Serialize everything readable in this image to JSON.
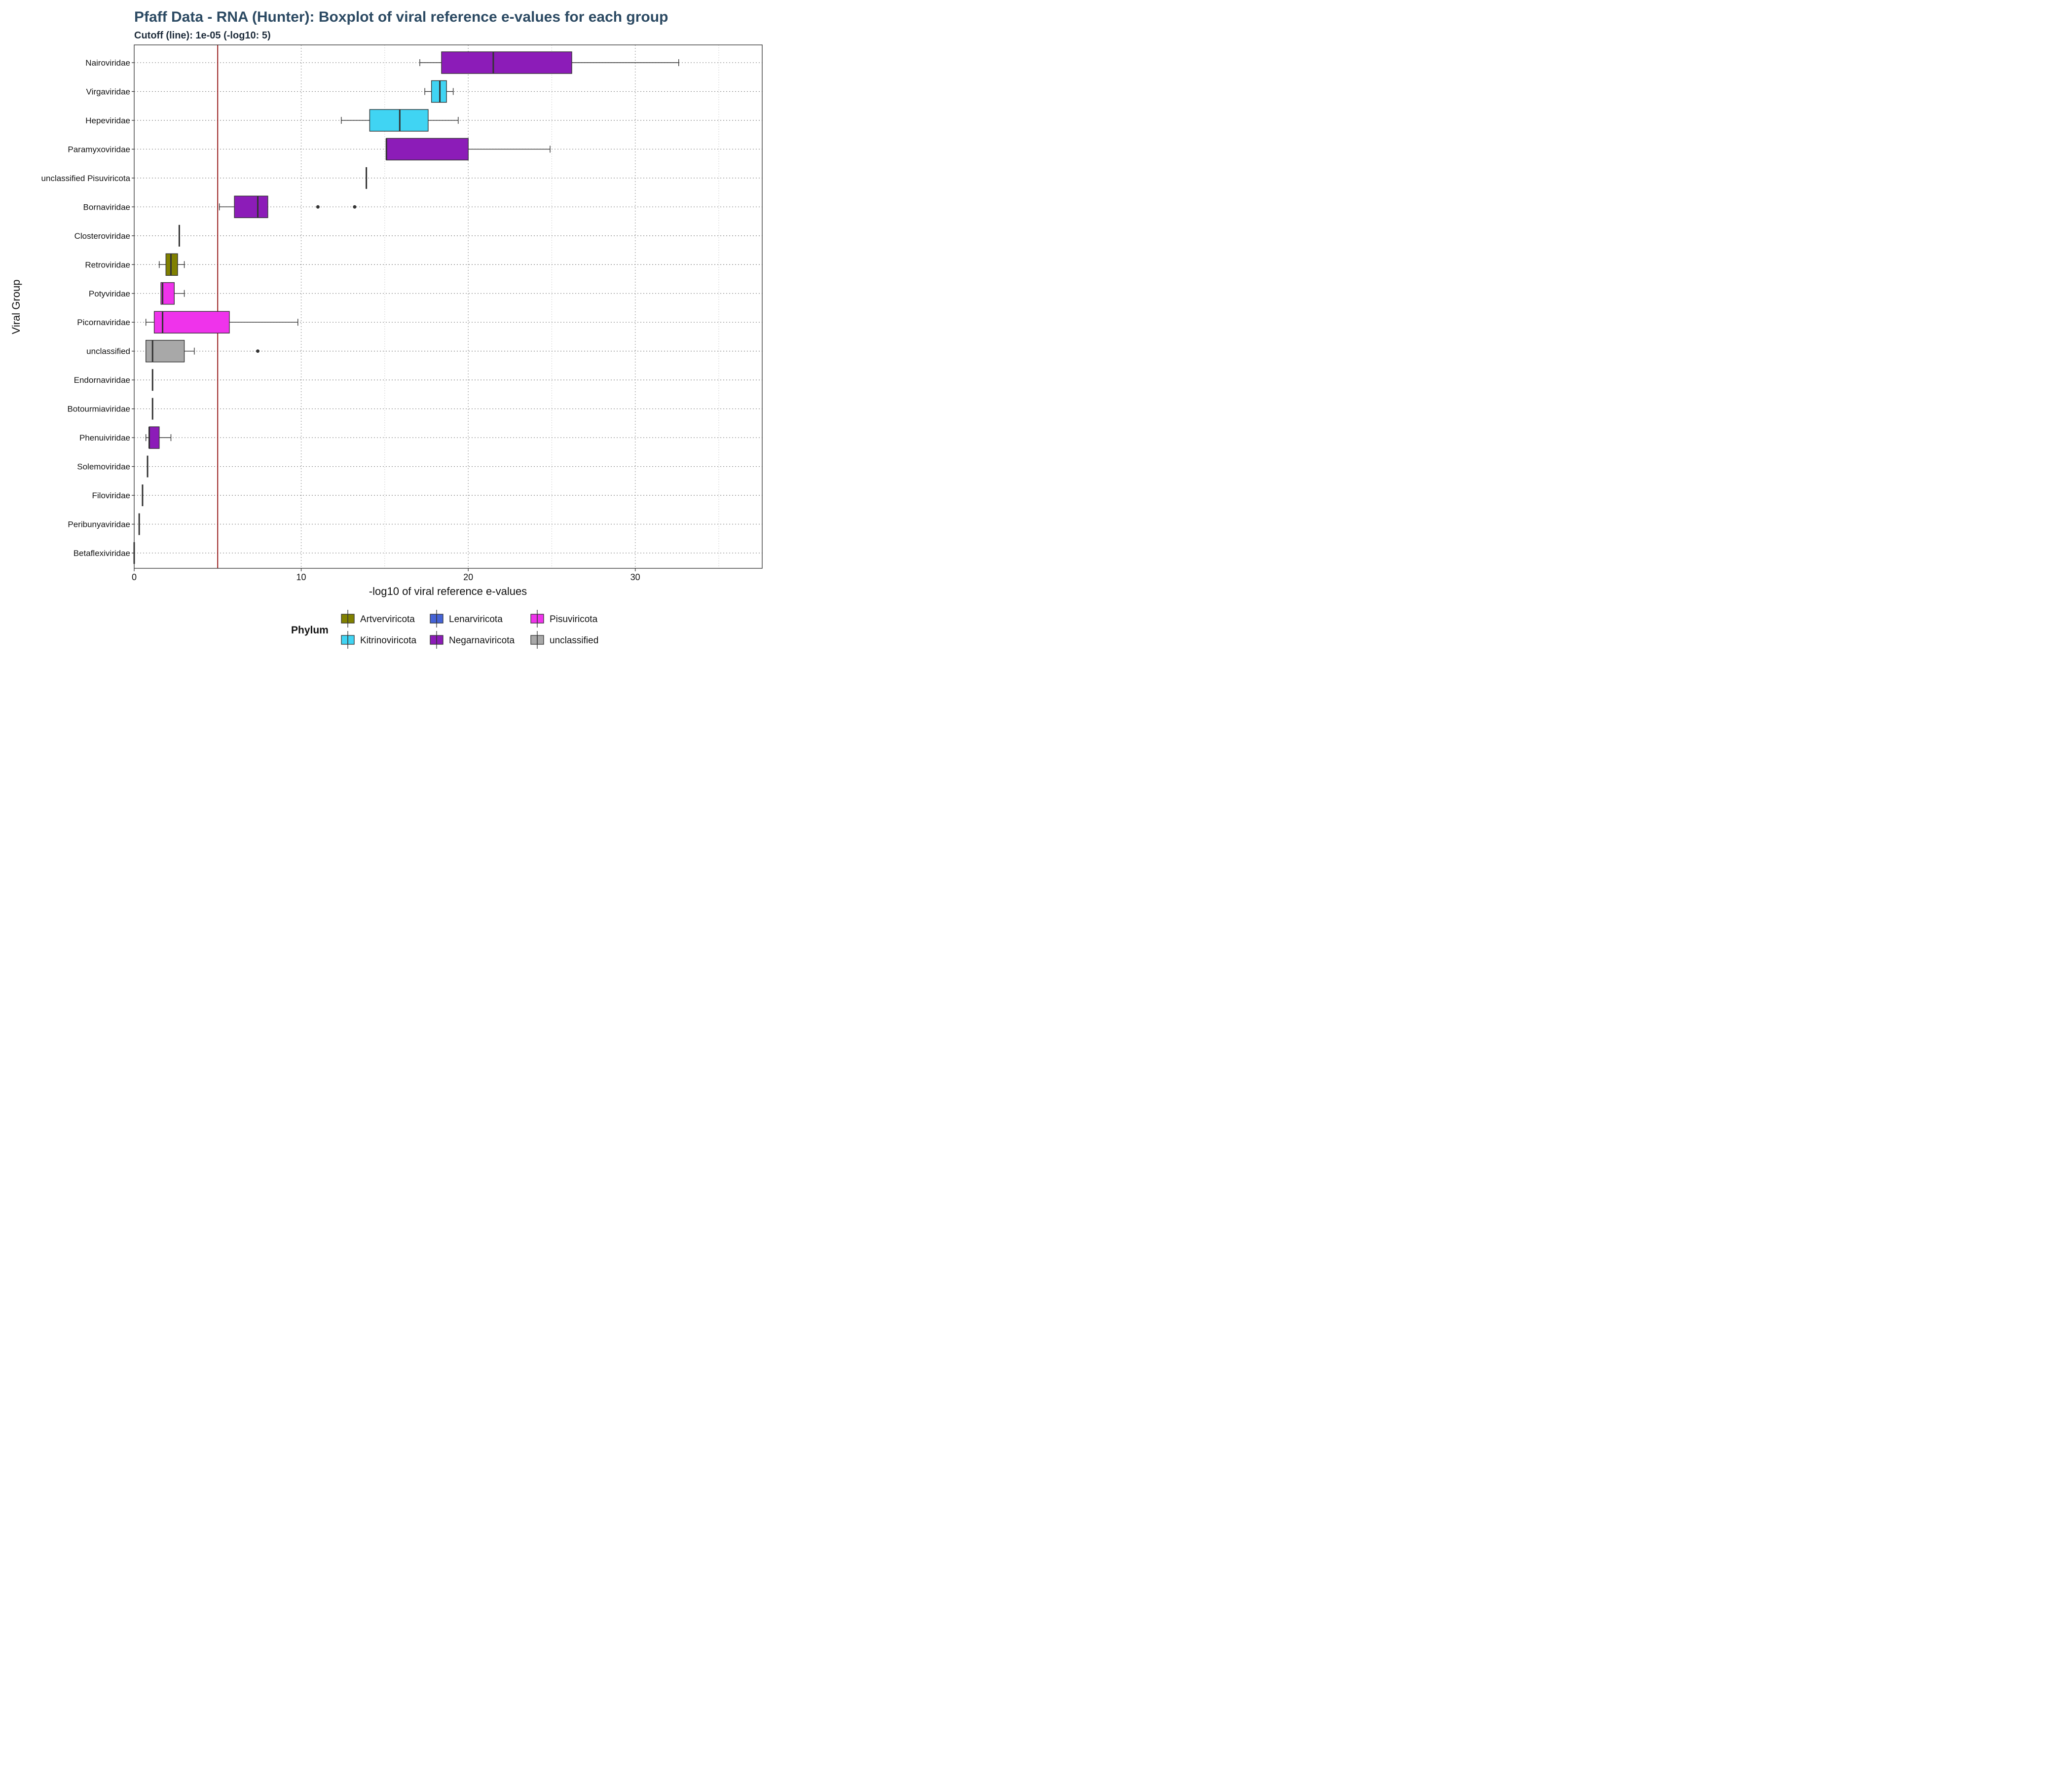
{
  "chart_data": {
    "type": "boxplot",
    "title": "Pfaff Data - RNA (Hunter): Boxplot of viral reference e-values for each group",
    "subtitle": "Cutoff (line): 1e-05 (-log10: 5)",
    "xlabel": "-log10 of viral reference e-values",
    "ylabel": "Viral Group",
    "xlim": [
      0,
      37.6
    ],
    "x_ticks": [
      0,
      10,
      20,
      30
    ],
    "x_tick_labels": [
      "0",
      "10",
      "20",
      "30"
    ],
    "cutoff": {
      "value": 5,
      "color": "#8b0000"
    },
    "grid": true,
    "legend": {
      "title": "Phylum",
      "position": "bottom",
      "entries": [
        {
          "name": "Artverviricota",
          "color": "#808000"
        },
        {
          "name": "Kitrinoviricota",
          "color": "#40d4f3"
        },
        {
          "name": "Lenarviricota",
          "color": "#4563d6"
        },
        {
          "name": "Negarnaviricota",
          "color": "#8c1cb8"
        },
        {
          "name": "Pisuviricota",
          "color": "#ef33eb"
        },
        {
          "name": "unclassified",
          "color": "#a8a8a8"
        }
      ]
    },
    "groups": [
      {
        "name": "Nairoviridae",
        "phylum": "Negarnaviricota",
        "min": 17.1,
        "q1": 18.4,
        "median": 21.5,
        "q3": 26.2,
        "max": 32.6,
        "outliers": []
      },
      {
        "name": "Virgaviridae",
        "phylum": "Kitrinoviricota",
        "min": 17.4,
        "q1": 17.8,
        "median": 18.3,
        "q3": 18.7,
        "max": 19.1,
        "outliers": []
      },
      {
        "name": "Hepeviridae",
        "phylum": "Kitrinoviricota",
        "min": 12.4,
        "q1": 14.1,
        "median": 15.9,
        "q3": 17.6,
        "max": 19.4,
        "outliers": []
      },
      {
        "name": "Paramyxoviridae",
        "phylum": "Negarnaviricota",
        "min": 15.1,
        "q1": 15.1,
        "median": 15.1,
        "q3": 20.0,
        "max": 24.9,
        "outliers": []
      },
      {
        "name": "unclassified Pisuviricota",
        "phylum": "Pisuviricota",
        "min": 13.9,
        "q1": 13.9,
        "median": 13.9,
        "q3": 13.9,
        "max": 13.9,
        "outliers": []
      },
      {
        "name": "Bornaviridae",
        "phylum": "Negarnaviricota",
        "min": 5.1,
        "q1": 6.0,
        "median": 7.4,
        "q3": 8.0,
        "max": 8.0,
        "outliers": [
          11.0,
          13.2
        ]
      },
      {
        "name": "Closteroviridae",
        "phylum": "Kitrinoviricota",
        "min": 2.7,
        "q1": 2.7,
        "median": 2.7,
        "q3": 2.7,
        "max": 2.7,
        "outliers": []
      },
      {
        "name": "Retroviridae",
        "phylum": "Artverviricota",
        "min": 1.5,
        "q1": 1.9,
        "median": 2.2,
        "q3": 2.6,
        "max": 3.0,
        "outliers": []
      },
      {
        "name": "Potyviridae",
        "phylum": "Pisuviricota",
        "min": 1.6,
        "q1": 1.6,
        "median": 1.7,
        "q3": 2.4,
        "max": 3.0,
        "outliers": []
      },
      {
        "name": "Picornaviridae",
        "phylum": "Pisuviricota",
        "min": 0.7,
        "q1": 1.2,
        "median": 1.7,
        "q3": 5.7,
        "max": 9.8,
        "outliers": []
      },
      {
        "name": "unclassified",
        "phylum": "unclassified",
        "min": 0.7,
        "q1": 0.7,
        "median": 1.1,
        "q3": 3.0,
        "max": 3.6,
        "outliers": [
          7.4
        ]
      },
      {
        "name": "Endornaviridae",
        "phylum": "Kitrinoviricota",
        "min": 1.1,
        "q1": 1.1,
        "median": 1.1,
        "q3": 1.1,
        "max": 1.1,
        "outliers": []
      },
      {
        "name": "Botourmiaviridae",
        "phylum": "Lenarviricota",
        "min": 1.1,
        "q1": 1.1,
        "median": 1.1,
        "q3": 1.1,
        "max": 1.1,
        "outliers": []
      },
      {
        "name": "Phenuiviridae",
        "phylum": "Negarnaviricota",
        "min": 0.7,
        "q1": 0.9,
        "median": 0.9,
        "q3": 1.5,
        "max": 2.2,
        "outliers": []
      },
      {
        "name": "Solemoviridae",
        "phylum": "Pisuviricota",
        "min": 0.8,
        "q1": 0.8,
        "median": 0.8,
        "q3": 0.8,
        "max": 0.8,
        "outliers": []
      },
      {
        "name": "Filoviridae",
        "phylum": "Negarnaviricota",
        "min": 0.5,
        "q1": 0.5,
        "median": 0.5,
        "q3": 0.5,
        "max": 0.5,
        "outliers": []
      },
      {
        "name": "Peribunyaviridae",
        "phylum": "Negarnaviricota",
        "min": 0.3,
        "q1": 0.3,
        "median": 0.3,
        "q3": 0.3,
        "max": 0.3,
        "outliers": []
      },
      {
        "name": "Betaflexiviridae",
        "phylum": "Kitrinoviricota",
        "min": 0.0,
        "q1": 0.0,
        "median": 0.0,
        "q3": 0.0,
        "max": 0.0,
        "outliers": []
      }
    ]
  }
}
